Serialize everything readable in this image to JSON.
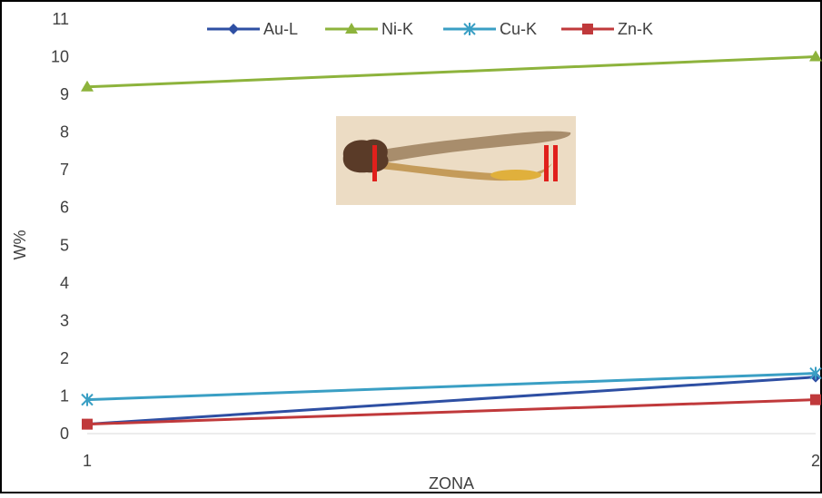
{
  "chart_data": {
    "type": "line",
    "title": "",
    "xlabel": "ZONA",
    "ylabel": "W%",
    "x": [
      "1",
      "2"
    ],
    "ylim": [
      0,
      11
    ],
    "yticks": [
      0,
      1,
      2,
      3,
      4,
      5,
      6,
      7,
      8,
      9,
      10,
      11
    ],
    "grid": false,
    "legend_position": "top",
    "series": [
      {
        "name": "Au-L",
        "values": [
          0.25,
          1.5
        ],
        "color": "#2e4fa3",
        "marker": "diamond"
      },
      {
        "name": "Ni-K",
        "values": [
          9.2,
          10.0
        ],
        "color": "#8db33c",
        "marker": "triangle"
      },
      {
        "name": "Cu-K",
        "values": [
          0.9,
          1.6
        ],
        "color": "#3a9fc4",
        "marker": "asterisk"
      },
      {
        "name": "Zn-K",
        "values": [
          0.25,
          0.9
        ],
        "color": "#c0393b",
        "marker": "square"
      }
    ]
  }
}
